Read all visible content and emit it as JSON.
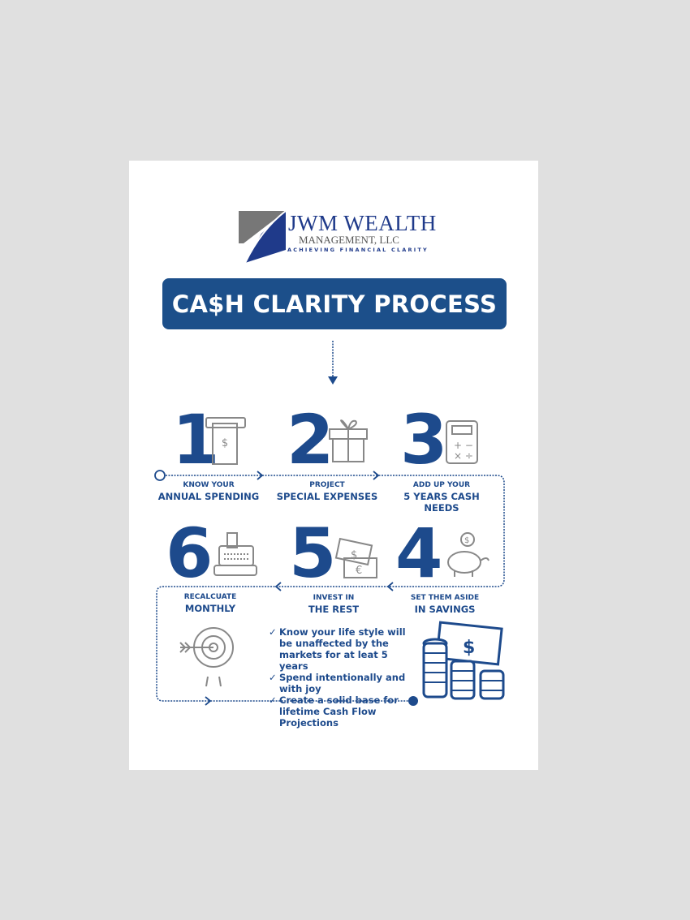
{
  "logo": {
    "line1": "JWM WEALTH",
    "line2": "MANAGEMENT, LLC",
    "tagline": "ACHIEVING FINANCIAL CLARITY"
  },
  "title": "CA$H CLARITY PROCESS",
  "colors": {
    "primary": "#1d4a8c",
    "banner": "#1c4f8a",
    "icon": "#888888",
    "background": "#e0e0e0"
  },
  "steps": [
    {
      "number": "1",
      "small": "KNOW YOUR",
      "big": "ANNUAL SPENDING",
      "icon": "atm-cash-icon"
    },
    {
      "number": "2",
      "small": "PROJECT",
      "big": "SPECIAL EXPENSES",
      "icon": "gift-icon"
    },
    {
      "number": "3",
      "small": "ADD UP YOUR",
      "big": "5 YEARS CASH NEEDS",
      "icon": "calculator-icon"
    },
    {
      "number": "4",
      "small": "SET THEM ASIDE",
      "big": "IN SAVINGS",
      "icon": "piggy-bank-icon"
    },
    {
      "number": "5",
      "small": "INVEST IN",
      "big": "THE REST",
      "icon": "banknotes-icon"
    },
    {
      "number": "6",
      "small": "RECALCUATE",
      "big": "MONTHLY",
      "icon": "cash-register-icon"
    }
  ],
  "benefits": [
    "Know  your life style will be unaffected by the markets for at leat 5 years",
    "Spend intentionally and with joy",
    "Create a solid base for lifetime Cash Flow Projections"
  ]
}
